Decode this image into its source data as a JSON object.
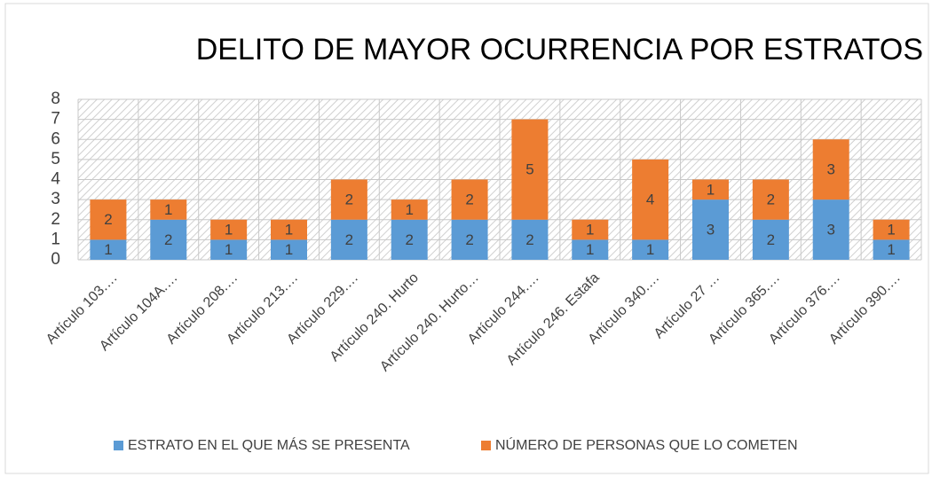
{
  "chart_data": {
    "type": "stacked_bar",
    "title": "DELITO DE MAYOR OCURRENCIA POR ESTRATOS",
    "categories": [
      "Artículo 103.…",
      "Artículo 104A.…",
      "Artículo 208.…",
      "Artículo 213.…",
      "Artículo 229.…",
      "Artículo 240. Hurto",
      "Artículo 240. Hurto…",
      "Artículo 244.…",
      "Artículo 246. Estafa",
      "Artículo 340.…",
      "Artículo 27 …",
      "Artículo 365.…",
      "Artículo 376.…",
      "Artículo 390.…"
    ],
    "series": [
      {
        "name": "ESTRATO EN EL QUE MÁS SE PRESENTA",
        "color": "#5b9bd5",
        "values": [
          1,
          2,
          1,
          1,
          2,
          2,
          2,
          2,
          1,
          1,
          3,
          2,
          3,
          1
        ]
      },
      {
        "name": "NÚMERO DE PERSONAS QUE  LO COMETEN",
        "color": "#ed7d31",
        "values": [
          2,
          1,
          1,
          1,
          2,
          1,
          2,
          5,
          1,
          4,
          1,
          2,
          3,
          1
        ]
      }
    ],
    "ylim": [
      0,
      8
    ],
    "yticks": [
      0,
      1,
      2,
      3,
      4,
      5,
      6,
      7,
      8
    ],
    "grid": true,
    "legend": "bottom"
  }
}
